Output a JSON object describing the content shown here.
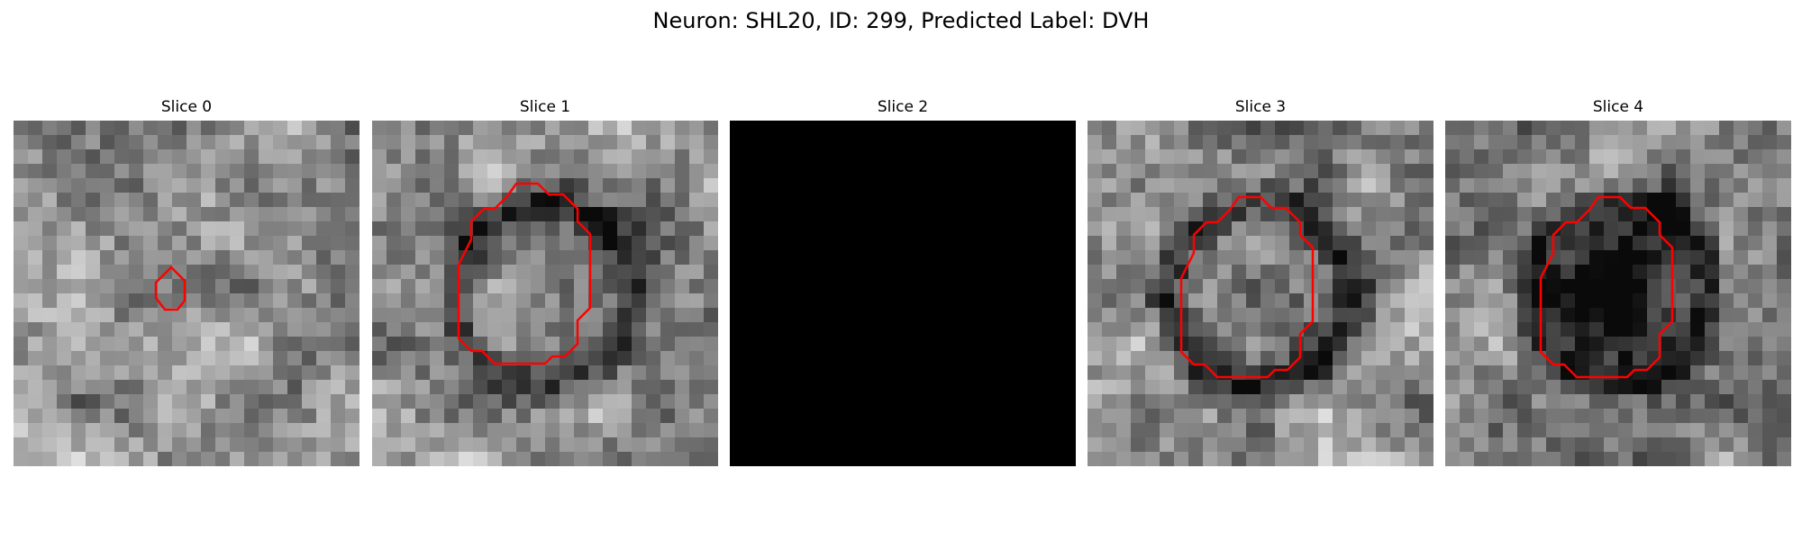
{
  "figure": {
    "title": "Neuron: SHL20, ID: 299, Predicted Label: DVH"
  },
  "slices": [
    {
      "title": "Slice 0",
      "blank": false,
      "seed": 11,
      "dark_center": 0.0,
      "contour": "small"
    },
    {
      "title": "Slice 1",
      "blank": false,
      "seed": 23,
      "dark_center": 0.25,
      "contour": "ring"
    },
    {
      "title": "Slice 2",
      "blank": true,
      "seed": 0,
      "dark_center": 0.0,
      "contour": "none"
    },
    {
      "title": "Slice 3",
      "blank": false,
      "seed": 37,
      "dark_center": 0.3,
      "contour": "ring"
    },
    {
      "title": "Slice 4",
      "blank": false,
      "seed": 53,
      "dark_center": 0.95,
      "contour": "ring"
    }
  ],
  "colors": {
    "contour": "#ff0000",
    "blank": "#000000"
  }
}
